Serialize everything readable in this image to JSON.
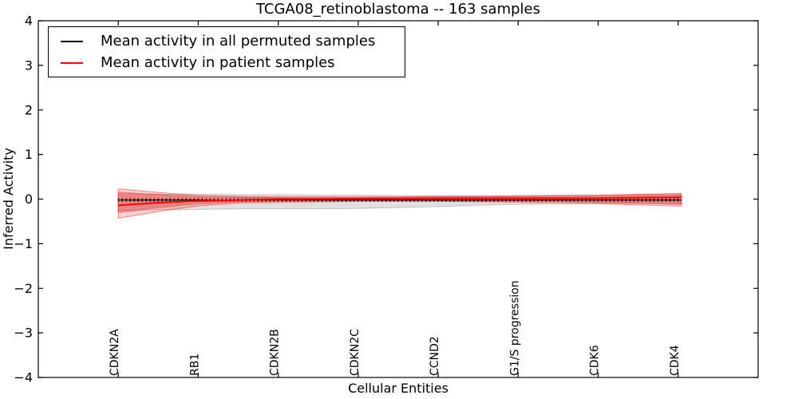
{
  "title": "TCGA08_retinoblastoma -- 163 samples",
  "legend": {
    "items": [
      {
        "label": "Mean activity in all permuted samples",
        "color": "#000000"
      },
      {
        "label": "Mean activity in patient samples",
        "color": "#ff0000"
      }
    ]
  },
  "chart_data": {
    "type": "line",
    "title": "TCGA08_retinoblastoma -- 163 samples",
    "xlabel": "Cellular Entities",
    "ylabel": "Inferred Activity",
    "xlim": [
      -1,
      8
    ],
    "ylim": [
      -4,
      4
    ],
    "y_ticks": [
      -4,
      -3,
      -2,
      -1,
      0,
      1,
      2,
      3,
      4
    ],
    "grid": false,
    "legend_position": "upper left",
    "frame_color": "#000000",
    "categories": [
      "CDKN2A",
      "RB1",
      "CDKN2B",
      "CDKN2C",
      "CCND2",
      "G1/S progression",
      "CDK6",
      "CDK4"
    ],
    "x": [
      0,
      0.5,
      1,
      1.5,
      2,
      2.5,
      3,
      3.5,
      4,
      4.5,
      5,
      5.5,
      6,
      6.5,
      7.04
    ],
    "series": [
      {
        "name": "Mean activity in all permuted samples",
        "color": "#000000",
        "marker": "vertical-tick",
        "values": [
          -0.02,
          -0.02,
          -0.02,
          -0.02,
          -0.02,
          -0.02,
          -0.02,
          -0.02,
          -0.02,
          -0.02,
          -0.02,
          -0.02,
          -0.02,
          -0.02,
          -0.02
        ]
      },
      {
        "name": "Mean activity in patient samples",
        "color": "#ff0000",
        "marker": "none",
        "values": [
          -0.14,
          -0.08,
          -0.04,
          -0.02,
          0.0,
          0.0,
          0.01,
          0.01,
          0.02,
          0.02,
          0.02,
          0.02,
          0.02,
          0.03,
          0.04
        ]
      }
    ],
    "bands": [
      {
        "name": "permuted-samples-std-band",
        "fill": "rgba(0,0,0,0.12)",
        "stroke": "rgba(0,0,0,0.18)",
        "upper": [
          0.12,
          0.11,
          0.11,
          0.1,
          0.1,
          0.09,
          0.09,
          0.08,
          0.08,
          0.08,
          0.08,
          0.09,
          0.09,
          0.1,
          0.1
        ],
        "lower": [
          -0.26,
          -0.24,
          -0.23,
          -0.22,
          -0.22,
          -0.22,
          -0.21,
          -0.19,
          -0.17,
          -0.14,
          -0.12,
          -0.11,
          -0.1,
          -0.1,
          -0.1
        ]
      },
      {
        "name": "patient-samples-band-outer",
        "fill": "rgba(255,0,0,0.18)",
        "stroke": "rgba(255,0,0,0.45)",
        "upper": [
          0.23,
          0.15,
          0.08,
          0.06,
          0.05,
          0.05,
          0.05,
          0.05,
          0.06,
          0.06,
          0.07,
          0.08,
          0.09,
          0.11,
          0.13
        ],
        "lower": [
          -0.43,
          -0.28,
          -0.15,
          -0.09,
          -0.07,
          -0.06,
          -0.05,
          -0.05,
          -0.05,
          -0.06,
          -0.07,
          -0.08,
          -0.1,
          -0.13,
          -0.16
        ]
      },
      {
        "name": "patient-samples-band-inner",
        "fill": "rgba(255,0,0,0.28)",
        "stroke": "rgba(255,0,0,0.35)",
        "upper": [
          0.16,
          0.1,
          0.05,
          0.04,
          0.03,
          0.03,
          0.03,
          0.04,
          0.04,
          0.04,
          0.05,
          0.05,
          0.06,
          0.08,
          0.1
        ],
        "lower": [
          -0.3,
          -0.19,
          -0.1,
          -0.06,
          -0.04,
          -0.04,
          -0.03,
          -0.03,
          -0.03,
          -0.04,
          -0.04,
          -0.05,
          -0.07,
          -0.09,
          -0.12
        ]
      }
    ]
  }
}
